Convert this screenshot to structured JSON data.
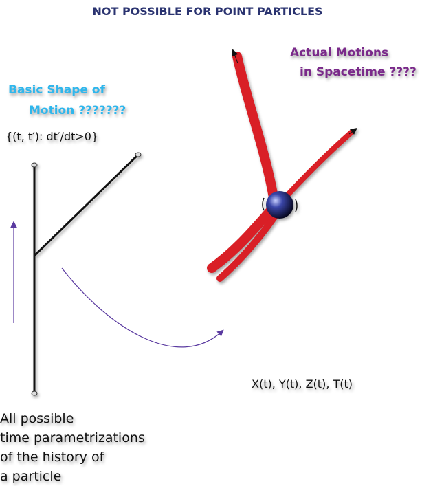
{
  "title": "NOT POSSIBLE FOR POINT PARTICLES",
  "left_label": {
    "lines": [
      "Basic Shape of",
      "Motion ???????"
    ]
  },
  "condition": "{(t, t′): dt′/dt>0}",
  "right_label": {
    "lines": [
      "Actual  Motions",
      "in Spacetime  ????"
    ]
  },
  "coordinates": "X(t), Y(t), Z(t), T(t)",
  "caption": {
    "lines": [
      "All possible",
      "time parametrizations",
      "of the history of",
      "a particle"
    ]
  }
}
